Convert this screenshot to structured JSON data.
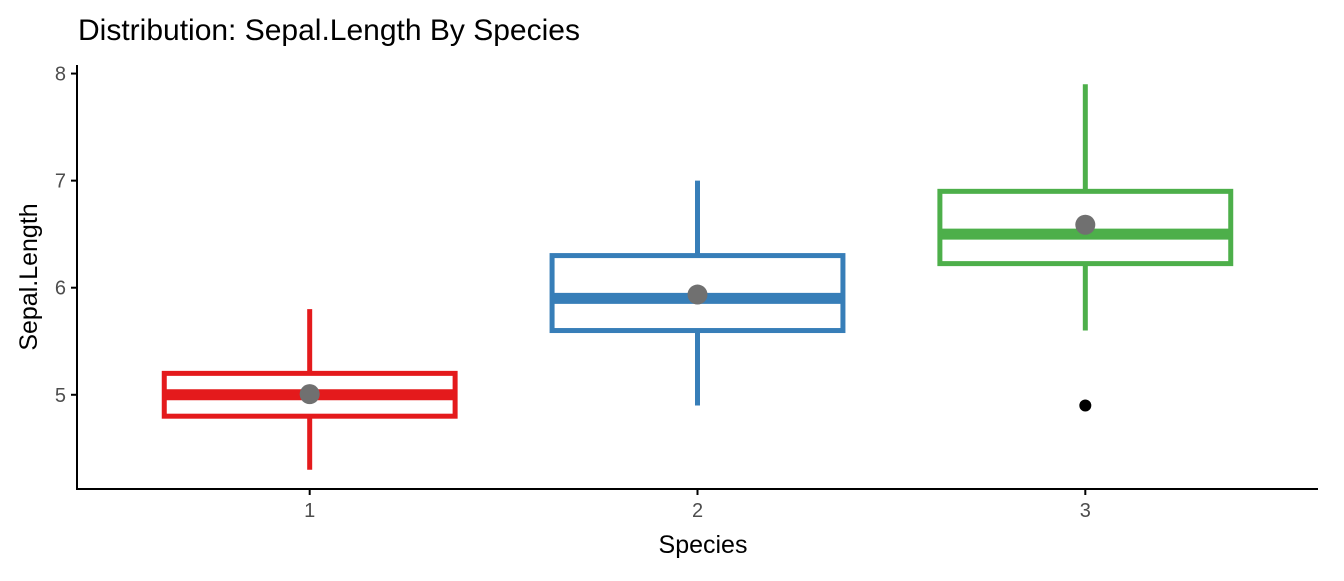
{
  "chart_data": {
    "type": "boxplot",
    "title": "Distribution: Sepal.Length By Species",
    "xlabel": "Species",
    "ylabel": "Sepal.Length",
    "ylim": [
      4.12,
      8.08
    ],
    "xlim": [
      0.4,
      3.6
    ],
    "yticks": [
      "5",
      "6",
      "7",
      "8"
    ],
    "categories": [
      "1",
      "2",
      "3"
    ],
    "grid": false,
    "boxes": [
      {
        "category": "1",
        "color": "#E41A1C",
        "whisker_low": 4.3,
        "q1": 4.8,
        "median": 5.0,
        "q3": 5.2,
        "whisker_high": 5.8,
        "mean": 5.006,
        "outliers": []
      },
      {
        "category": "2",
        "color": "#377EB8",
        "whisker_low": 4.9,
        "q1": 5.6,
        "median": 5.9,
        "q3": 6.3,
        "whisker_high": 7.0,
        "mean": 5.936,
        "outliers": []
      },
      {
        "category": "3",
        "color": "#4DAF4A",
        "whisker_low": 5.6,
        "q1": 6.225,
        "median": 6.5,
        "q3": 6.9,
        "whisker_high": 7.9,
        "mean": 6.588,
        "outliers": [
          4.9
        ]
      }
    ],
    "mean_marker_color": "#707070",
    "outlier_color": "#000000"
  }
}
